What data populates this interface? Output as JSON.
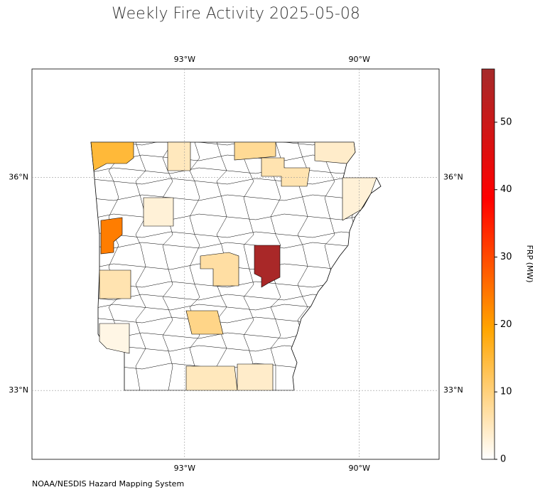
{
  "chart_data": {
    "type": "choropleth",
    "title": "Weekly Fire Activity 2025-05-08",
    "xlim": [
      -95.62,
      -88.63
    ],
    "ylim": [
      32.03,
      37.53
    ],
    "xticks": [
      {
        "value": -93,
        "label": "93°W"
      },
      {
        "value": -90,
        "label": "90°W"
      }
    ],
    "yticks": [
      {
        "value": 36,
        "label": "36°N"
      },
      {
        "value": 33,
        "label": "33°N"
      }
    ],
    "grid": true,
    "values": [
      15,
      24,
      57,
      8,
      6,
      4,
      5,
      3,
      7,
      9,
      5,
      4,
      3,
      6,
      2
    ],
    "colorbar": {
      "label": "FRP (MW)",
      "lim": [
        0,
        57.9
      ],
      "ticks": [
        0,
        10,
        20,
        30,
        40,
        50
      ],
      "colormap": [
        "#ffffff",
        "#ffa500",
        "#ff0000",
        "#a52a2a"
      ]
    },
    "credit": "NOAA/NESDIS Hazard Mapping System"
  }
}
